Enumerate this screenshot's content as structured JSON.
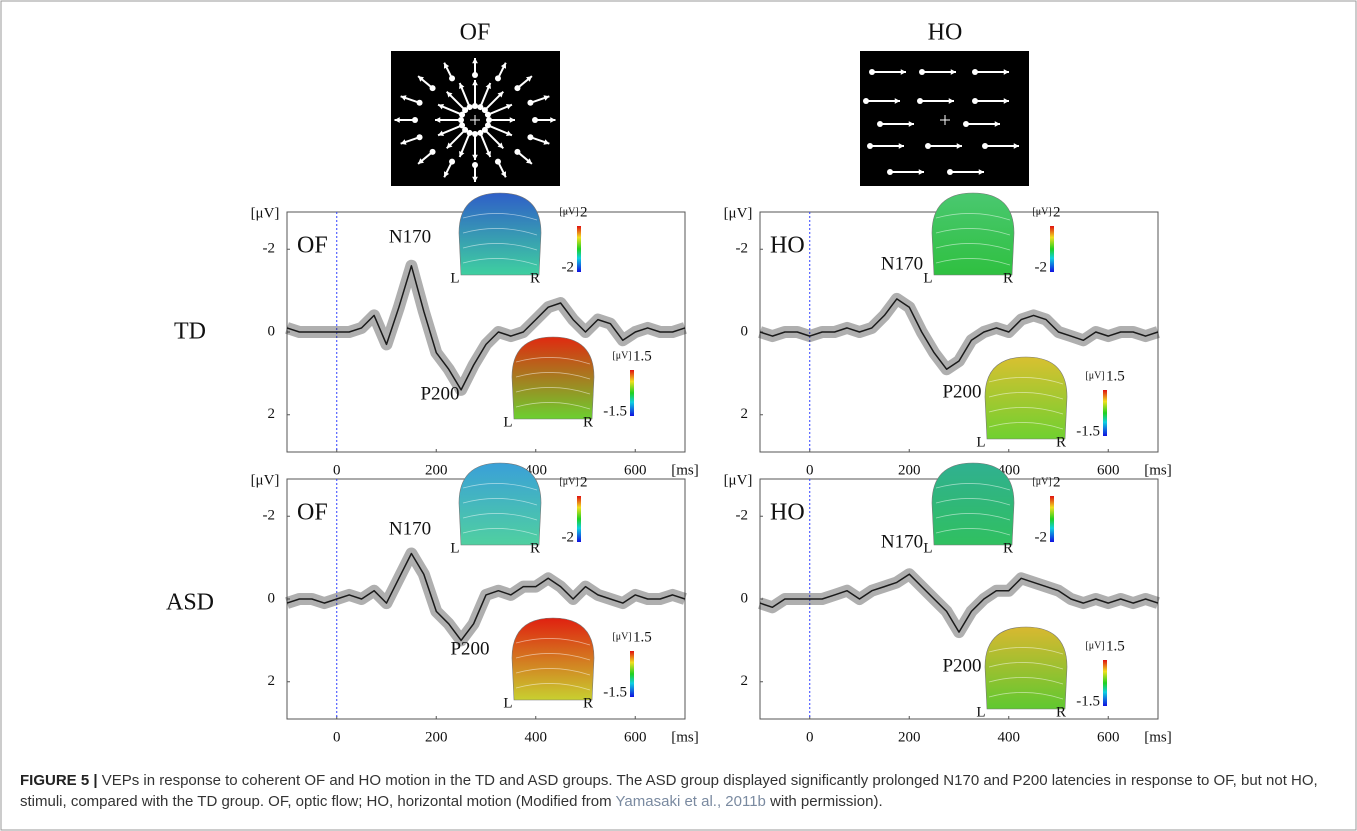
{
  "figure": {
    "stimuli": [
      "OF",
      "HO"
    ],
    "groups": [
      "TD",
      "ASD"
    ]
  },
  "chart_data": [
    {
      "type": "line",
      "panel_label": "OF",
      "annotations": [
        "N170",
        "P200"
      ],
      "x_unit": "[ms]",
      "y_unit": "[μV]",
      "x": [
        -100,
        -75,
        -50,
        -25,
        0,
        25,
        50,
        75,
        100,
        125,
        150,
        175,
        200,
        225,
        250,
        275,
        300,
        325,
        350,
        375,
        400,
        425,
        450,
        475,
        500,
        525,
        550,
        575,
        600,
        625,
        650,
        675,
        700
      ],
      "values": [
        -0.1,
        0,
        0,
        0,
        0,
        0,
        -0.1,
        -0.4,
        0.3,
        -0.6,
        -1.6,
        -0.5,
        0.5,
        0.9,
        1.4,
        0.8,
        0.3,
        0,
        0.1,
        0,
        -0.3,
        -0.6,
        -0.7,
        -0.3,
        0,
        -0.3,
        -0.2,
        0.2,
        0,
        -0.1,
        0,
        0,
        -0.1
      ],
      "xlim": [
        -100,
        700
      ],
      "xticks": [
        0,
        200,
        400,
        600
      ],
      "ylim": [
        -2.9,
        2.9
      ],
      "yticks": [
        -2,
        0,
        2
      ],
      "y_inverted": true,
      "onset_x": 0,
      "color": "#1a1a1a",
      "topomaps": [
        {
          "unit": "[μV]",
          "range": [
            -2,
            2
          ],
          "sides": [
            "L",
            "R"
          ],
          "colors": [
            "#2f5fc8",
            "#3fd0a0"
          ]
        },
        {
          "unit": "[μV]",
          "range": [
            -1.5,
            1.5
          ],
          "sides": [
            "L",
            "R"
          ],
          "colors": [
            "#e02a10",
            "#6cd030"
          ]
        }
      ]
    },
    {
      "type": "line",
      "panel_label": "HO",
      "annotations": [
        "N170",
        "P200"
      ],
      "x_unit": "[ms]",
      "y_unit": "[μV]",
      "x": [
        -100,
        -75,
        -50,
        -25,
        0,
        25,
        50,
        75,
        100,
        125,
        150,
        175,
        200,
        225,
        250,
        275,
        300,
        325,
        350,
        375,
        400,
        425,
        450,
        475,
        500,
        525,
        550,
        575,
        600,
        625,
        650,
        675,
        700
      ],
      "values": [
        0,
        0.1,
        0,
        0,
        0.1,
        0,
        0,
        -0.1,
        0,
        -0.1,
        -0.4,
        -0.8,
        -0.6,
        0,
        0.5,
        0.9,
        0.7,
        0.2,
        0,
        -0.1,
        0,
        -0.3,
        -0.4,
        -0.3,
        0,
        0.1,
        0.2,
        0,
        0.1,
        0,
        0,
        0.1,
        0
      ],
      "xlim": [
        -100,
        700
      ],
      "xticks": [
        0,
        200,
        400,
        600
      ],
      "ylim": [
        -2.9,
        2.9
      ],
      "yticks": [
        -2,
        0,
        2
      ],
      "y_inverted": true,
      "onset_x": 0,
      "color": "#1a1a1a",
      "topomaps": [
        {
          "unit": "[μV]",
          "range": [
            -2,
            2
          ],
          "sides": [
            "L",
            "R"
          ],
          "colors": [
            "#4ac870",
            "#2fc040"
          ]
        },
        {
          "unit": "[μV]",
          "range": [
            -1.5,
            1.5
          ],
          "sides": [
            "L",
            "R"
          ],
          "colors": [
            "#d8c030",
            "#70d030"
          ]
        }
      ]
    },
    {
      "type": "line",
      "panel_label": "OF",
      "annotations": [
        "N170",
        "P200"
      ],
      "x_unit": "[ms]",
      "y_unit": "[μV]",
      "x": [
        -100,
        -75,
        -50,
        -25,
        0,
        25,
        50,
        75,
        100,
        125,
        150,
        175,
        200,
        225,
        250,
        275,
        300,
        325,
        350,
        375,
        400,
        425,
        450,
        475,
        500,
        525,
        550,
        575,
        600,
        625,
        650,
        675,
        700
      ],
      "values": [
        0.1,
        0,
        0,
        0.1,
        0,
        -0.1,
        0,
        -0.2,
        0.1,
        -0.5,
        -1.1,
        -0.6,
        0.3,
        0.6,
        1.0,
        0.6,
        -0.1,
        -0.2,
        -0.1,
        -0.3,
        -0.3,
        -0.5,
        -0.3,
        0,
        -0.3,
        -0.1,
        0,
        0.1,
        -0.1,
        0,
        0,
        -0.1,
        0
      ],
      "xlim": [
        -100,
        700
      ],
      "xticks": [
        0,
        200,
        400,
        600
      ],
      "ylim": [
        -2.9,
        2.9
      ],
      "yticks": [
        -2,
        0,
        2
      ],
      "y_inverted": true,
      "onset_x": 0,
      "color": "#1a1a1a",
      "topomaps": [
        {
          "unit": "[μV]",
          "range": [
            -2,
            2
          ],
          "sides": [
            "L",
            "R"
          ],
          "colors": [
            "#3aa0d8",
            "#50d0a0"
          ]
        },
        {
          "unit": "[μV]",
          "range": [
            -1.5,
            1.5
          ],
          "sides": [
            "L",
            "R"
          ],
          "colors": [
            "#e02010",
            "#c8d030"
          ]
        }
      ]
    },
    {
      "type": "line",
      "panel_label": "HO",
      "annotations": [
        "N170",
        "P200"
      ],
      "x_unit": "[ms]",
      "y_unit": "[μV]",
      "x": [
        -100,
        -75,
        -50,
        -25,
        0,
        25,
        50,
        75,
        100,
        125,
        150,
        175,
        200,
        225,
        250,
        275,
        300,
        325,
        350,
        375,
        400,
        425,
        450,
        475,
        500,
        525,
        550,
        575,
        600,
        625,
        650,
        675,
        700
      ],
      "values": [
        0.1,
        0.2,
        0,
        0,
        0,
        0,
        -0.1,
        -0.2,
        0,
        -0.2,
        -0.3,
        -0.4,
        -0.6,
        -0.3,
        0,
        0.3,
        0.8,
        0.3,
        0,
        -0.2,
        -0.2,
        -0.5,
        -0.4,
        -0.3,
        -0.2,
        0,
        0.1,
        0,
        0.1,
        0,
        0.1,
        0,
        0.1
      ],
      "xlim": [
        -100,
        700
      ],
      "xticks": [
        0,
        200,
        400,
        600
      ],
      "ylim": [
        -2.9,
        2.9
      ],
      "yticks": [
        -2,
        0,
        2
      ],
      "y_inverted": true,
      "onset_x": 0,
      "color": "#1a1a1a",
      "topomaps": [
        {
          "unit": "[μV]",
          "range": [
            -2,
            2
          ],
          "sides": [
            "L",
            "R"
          ],
          "colors": [
            "#30b090",
            "#30c060"
          ]
        },
        {
          "unit": "[μV]",
          "range": [
            -1.5,
            1.5
          ],
          "sides": [
            "L",
            "R"
          ],
          "colors": [
            "#d8b830",
            "#60c830"
          ]
        }
      ]
    }
  ],
  "caption": {
    "label": "FIGURE 5 |",
    "text": "VEPs in response to coherent OF and HO motion in the TD and ASD groups. The ASD group displayed significantly prolonged N170 and P200 latencies in response to OF, but not HO, stimuli, compared with the TD group. OF, optic flow; HO, horizontal motion (Modified from",
    "link": "Yamasaki et al., 2011b",
    "suffix": "with permission)."
  }
}
